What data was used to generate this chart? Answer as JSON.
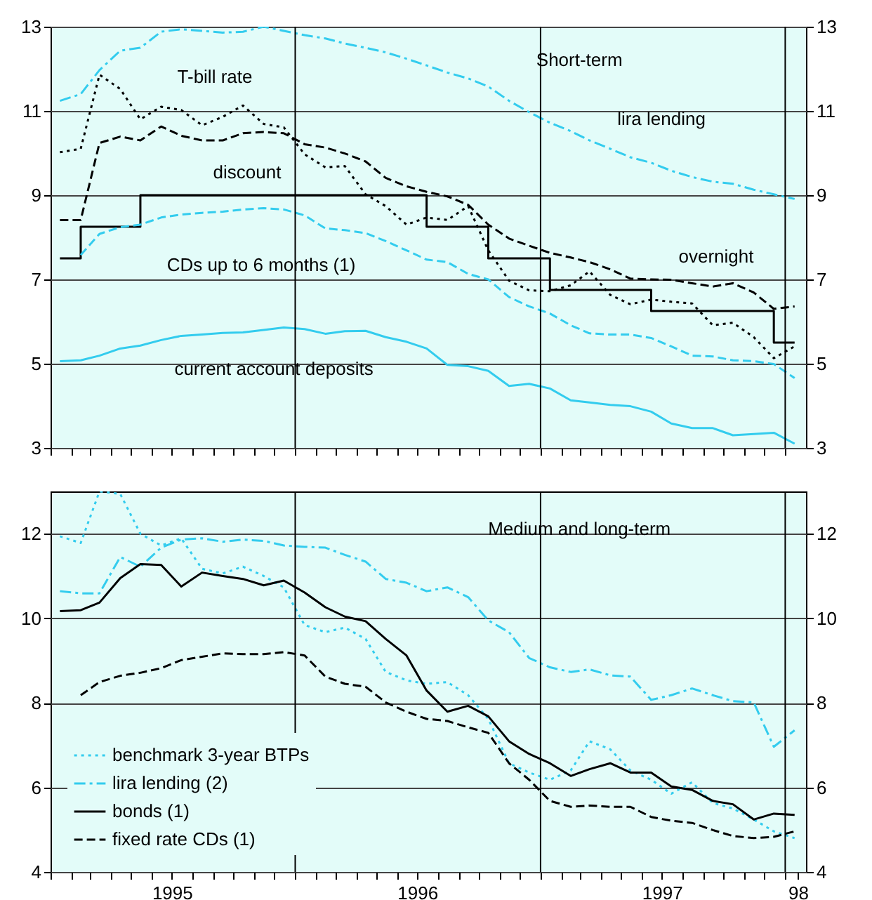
{
  "chart_data": [
    {
      "type": "line",
      "title": "Short-term",
      "x": [
        "1995-01-15",
        "1995-02-15",
        "1995-03-15",
        "1995-04-15",
        "1995-05-15",
        "1995-06-15",
        "1995-07-15",
        "1995-08-15",
        "1995-09-15",
        "1995-10-15",
        "1995-11-15",
        "1995-12-15",
        "1996-01-15",
        "1996-02-15",
        "1996-03-15",
        "1996-04-15",
        "1996-05-15",
        "1996-06-15",
        "1996-07-15",
        "1996-08-15",
        "1996-09-15",
        "1996-10-15",
        "1996-11-15",
        "1996-12-15",
        "1997-01-15",
        "1997-02-15",
        "1997-03-15",
        "1997-04-15",
        "1997-05-15",
        "1997-06-15",
        "1997-07-15",
        "1997-08-15",
        "1997-09-15",
        "1997-10-15",
        "1997-11-15",
        "1997-12-15",
        "1998-01-15"
      ],
      "series": [
        {
          "color": "#33ccee",
          "line_style": "dashdot",
          "values": [
            11.24,
            11.4,
            11.97,
            12.43,
            12.5,
            12.88,
            12.94,
            12.9,
            12.86,
            12.88,
            13.0,
            12.9,
            12.8,
            12.72,
            12.6,
            12.5,
            12.39,
            12.24,
            12.08,
            11.91,
            11.77,
            11.58,
            11.24,
            10.97,
            10.72,
            10.52,
            10.3,
            10.1,
            9.9,
            9.77,
            9.58,
            9.43,
            9.32,
            9.27,
            9.13,
            9.02,
            8.91
          ]
        },
        {
          "color": "#000000",
          "line_style": "dotted",
          "values": [
            10.02,
            10.1,
            11.86,
            11.52,
            10.8,
            11.1,
            11.02,
            10.66,
            10.86,
            11.13,
            10.69,
            10.61,
            9.97,
            9.66,
            9.69,
            9.02,
            8.74,
            8.3,
            8.47,
            8.41,
            8.74,
            7.69,
            6.97,
            6.74,
            6.72,
            6.86,
            7.19,
            6.63,
            6.41,
            6.52,
            6.47,
            6.43,
            5.91,
            5.97,
            5.63,
            5.13,
            5.41
          ]
        },
        {
          "color": "#000000",
          "line_style": "dashed",
          "values": [
            8.41,
            8.41,
            10.24,
            10.39,
            10.3,
            10.63,
            10.41,
            10.3,
            10.3,
            10.47,
            10.5,
            10.47,
            10.21,
            10.13,
            9.99,
            9.8,
            9.41,
            9.21,
            9.08,
            8.97,
            8.77,
            8.3,
            7.97,
            7.8,
            7.63,
            7.52,
            7.41,
            7.24,
            7.02,
            7.0,
            6.99,
            6.91,
            6.83,
            6.91,
            6.69,
            6.3,
            6.36
          ]
        },
        {
          "type": "step",
          "color": "#000000",
          "line_style": "solid",
          "values": [
            7.5,
            8.25,
            8.25,
            8.25,
            9,
            9,
            9,
            9,
            9,
            9,
            9,
            9,
            9,
            9,
            9,
            9,
            9,
            9,
            8.25,
            8.25,
            8.25,
            7.5,
            7.5,
            7.5,
            6.75,
            6.75,
            6.75,
            6.75,
            6.75,
            6.25,
            6.25,
            6.25,
            6.25,
            6.25,
            6.25,
            5.5,
            5.5
          ]
        },
        {
          "color": "#33ccee",
          "line_style": "dashed",
          "values": [
            null,
            7.58,
            8.08,
            8.24,
            8.3,
            8.47,
            8.54,
            8.58,
            8.61,
            8.66,
            8.69,
            8.66,
            8.52,
            8.21,
            8.17,
            8.1,
            7.91,
            7.69,
            7.47,
            7.41,
            7.13,
            7.0,
            6.58,
            6.36,
            6.19,
            5.91,
            5.72,
            5.69,
            5.69,
            5.61,
            5.41,
            5.19,
            5.17,
            5.08,
            5.06,
            4.99,
            4.66
          ]
        },
        {
          "color": "#33ccee",
          "line_style": "solid",
          "values": [
            5.06,
            5.08,
            5.19,
            5.36,
            5.43,
            5.56,
            5.66,
            5.69,
            5.73,
            5.74,
            5.8,
            5.86,
            5.82,
            5.71,
            5.77,
            5.78,
            5.63,
            5.52,
            5.36,
            4.97,
            4.94,
            4.83,
            4.47,
            4.52,
            4.41,
            4.13,
            4.08,
            4.02,
            3.99,
            3.86,
            3.58,
            3.47,
            3.47,
            3.3,
            3.33,
            3.36,
            3.1
          ]
        }
      ],
      "annotations": [
        "T-bill rate",
        "lira lending",
        "discount",
        "CDs up to 6 months (1)",
        "overnight",
        "current account deposits"
      ],
      "xlim": [
        "1995-01",
        "1998-02"
      ],
      "xticks": [
        {
          "value": "1995-01",
          "label": null
        },
        {
          "value": "1995-02",
          "label": null
        },
        {
          "value": "1995-03",
          "label": null
        },
        {
          "value": "1995-04",
          "label": null
        },
        {
          "value": "1995-05",
          "label": null
        },
        {
          "value": "1995-06",
          "label": null
        },
        {
          "value": "1995-07",
          "label": null
        },
        {
          "value": "1995-08",
          "label": null
        },
        {
          "value": "1995-09",
          "label": null
        },
        {
          "value": "1995-10",
          "label": null
        },
        {
          "value": "1995-11",
          "label": null
        },
        {
          "value": "1995-12",
          "label": null
        },
        {
          "value": "1996-01",
          "label": null
        },
        {
          "value": "1996-02",
          "label": null
        },
        {
          "value": "1996-03",
          "label": null
        },
        {
          "value": "1996-04",
          "label": null
        },
        {
          "value": "1996-05",
          "label": null
        },
        {
          "value": "1996-06",
          "label": null
        },
        {
          "value": "1996-07",
          "label": null
        },
        {
          "value": "1996-08",
          "label": null
        },
        {
          "value": "1996-09",
          "label": null
        },
        {
          "value": "1996-10",
          "label": null
        },
        {
          "value": "1996-11",
          "label": null
        },
        {
          "value": "1996-12",
          "label": null
        },
        {
          "value": "1997-01",
          "label": null
        },
        {
          "value": "1997-02",
          "label": null
        },
        {
          "value": "1997-03",
          "label": null
        },
        {
          "value": "1997-04",
          "label": null
        },
        {
          "value": "1997-05",
          "label": null
        },
        {
          "value": "1997-06",
          "label": null
        },
        {
          "value": "1997-07",
          "label": null
        },
        {
          "value": "1997-08",
          "label": null
        },
        {
          "value": "1997-09",
          "label": null
        },
        {
          "value": "1997-10",
          "label": null
        },
        {
          "value": "1997-11",
          "label": null
        },
        {
          "value": "1997-12",
          "label": null
        },
        {
          "value": "1998-01",
          "label": null
        }
      ],
      "ylim": [
        3,
        13
      ],
      "yticks": [
        3,
        5,
        7,
        9,
        11,
        13
      ],
      "y2lim": [
        3,
        13
      ],
      "y2ticks": [
        3,
        5,
        7,
        9,
        11,
        13
      ],
      "grid": "y",
      "tick_labels": "y",
      "ref_lines": [
        {
          "axis": "x",
          "value": "1996-01",
          "color": "#000000"
        },
        {
          "axis": "x",
          "value": "1997-01",
          "color": "#000000"
        },
        {
          "axis": "x",
          "value": "1998-01",
          "color": "#000000"
        }
      ]
    },
    {
      "type": "line",
      "title": "Medium and long-term",
      "x": [
        "1995-01-15",
        "1995-02-15",
        "1995-03-15",
        "1995-04-15",
        "1995-05-15",
        "1995-06-15",
        "1995-07-15",
        "1995-08-15",
        "1995-09-15",
        "1995-10-15",
        "1995-11-15",
        "1995-12-15",
        "1996-01-15",
        "1996-02-15",
        "1996-03-15",
        "1996-04-15",
        "1996-05-15",
        "1996-06-15",
        "1996-07-15",
        "1996-08-15",
        "1996-09-15",
        "1996-10-15",
        "1996-11-15",
        "1996-12-15",
        "1997-01-15",
        "1997-02-15",
        "1997-03-15",
        "1997-04-15",
        "1997-05-15",
        "1997-06-15",
        "1997-07-15",
        "1997-08-15",
        "1997-09-15",
        "1997-10-15",
        "1997-11-15",
        "1997-12-15",
        "1998-01-15"
      ],
      "series": [
        {
          "name": "benchmark 3-year BTPs",
          "color": "#33ccee",
          "line_style": "dotted",
          "values": [
            11.94,
            11.78,
            13.0,
            12.94,
            12.0,
            11.72,
            11.89,
            11.17,
            11.06,
            11.22,
            11.0,
            10.73,
            9.84,
            9.67,
            9.78,
            9.51,
            8.73,
            8.53,
            8.45,
            8.49,
            8.18,
            7.62,
            6.57,
            6.35,
            6.18,
            6.4,
            7.09,
            6.9,
            6.4,
            6.18,
            5.85,
            6.12,
            5.63,
            5.5,
            5.24,
            4.96,
            4.8
          ]
        },
        {
          "name": "lira lending (2)",
          "color": "#33ccee",
          "line_style": "dashdot",
          "values": [
            10.64,
            10.59,
            10.59,
            11.45,
            11.22,
            11.67,
            11.86,
            11.89,
            11.81,
            11.86,
            11.83,
            11.72,
            11.69,
            11.67,
            11.5,
            11.34,
            10.93,
            10.84,
            10.64,
            10.73,
            10.5,
            9.95,
            9.67,
            9.06,
            8.84,
            8.73,
            8.79,
            8.65,
            8.62,
            8.07,
            8.18,
            8.34,
            8.18,
            8.04,
            8.01,
            6.96,
            7.35
          ]
        },
        {
          "name": "bonds (1)",
          "color": "#000000",
          "line_style": "solid",
          "values": [
            10.17,
            10.19,
            10.37,
            10.95,
            11.28,
            11.26,
            10.75,
            11.08,
            11.0,
            10.93,
            10.78,
            10.89,
            10.61,
            10.26,
            10.04,
            9.93,
            9.51,
            9.12,
            8.29,
            7.79,
            7.93,
            7.68,
            7.09,
            6.79,
            6.57,
            6.27,
            6.43,
            6.57,
            6.35,
            6.35,
            6.02,
            5.94,
            5.68,
            5.6,
            5.24,
            5.38,
            5.35
          ]
        },
        {
          "name": "fixed rate CDs (1)",
          "color": "#000000",
          "line_style": "dashed",
          "values": [
            null,
            8.18,
            8.49,
            8.64,
            8.71,
            8.82,
            9.01,
            9.09,
            9.17,
            9.15,
            9.15,
            9.2,
            9.12,
            8.62,
            8.45,
            8.38,
            8.01,
            7.79,
            7.62,
            7.57,
            7.42,
            7.29,
            6.57,
            6.18,
            5.68,
            5.54,
            5.57,
            5.54,
            5.54,
            5.3,
            5.21,
            5.16,
            4.99,
            4.85,
            4.8,
            4.83,
            4.96
          ]
        }
      ],
      "xlim": [
        "1995-01",
        "1998-02"
      ],
      "xticks": [
        {
          "value": "1995-01",
          "label": null
        },
        {
          "value": "1995-02",
          "label": null
        },
        {
          "value": "1995-03",
          "label": null
        },
        {
          "value": "1995-04",
          "label": null
        },
        {
          "value": "1995-05",
          "label": null
        },
        {
          "value": "1995-06",
          "label": null
        },
        {
          "value": "1995-07",
          "label": "1995"
        },
        {
          "value": "1995-08",
          "label": null
        },
        {
          "value": "1995-09",
          "label": null
        },
        {
          "value": "1995-10",
          "label": null
        },
        {
          "value": "1995-11",
          "label": null
        },
        {
          "value": "1995-12",
          "label": null
        },
        {
          "value": "1996-01",
          "label": null
        },
        {
          "value": "1996-02",
          "label": null
        },
        {
          "value": "1996-03",
          "label": null
        },
        {
          "value": "1996-04",
          "label": null
        },
        {
          "value": "1996-05",
          "label": null
        },
        {
          "value": "1996-06",
          "label": null
        },
        {
          "value": "1996-07",
          "label": "1996"
        },
        {
          "value": "1996-08",
          "label": null
        },
        {
          "value": "1996-09",
          "label": null
        },
        {
          "value": "1996-10",
          "label": null
        },
        {
          "value": "1996-11",
          "label": null
        },
        {
          "value": "1996-12",
          "label": null
        },
        {
          "value": "1997-01",
          "label": null
        },
        {
          "value": "1997-02",
          "label": null
        },
        {
          "value": "1997-03",
          "label": null
        },
        {
          "value": "1997-04",
          "label": null
        },
        {
          "value": "1997-05",
          "label": null
        },
        {
          "value": "1997-06",
          "label": null
        },
        {
          "value": "1997-07",
          "label": "1997"
        },
        {
          "value": "1997-08",
          "label": null
        },
        {
          "value": "1997-09",
          "label": null
        },
        {
          "value": "1997-10",
          "label": null
        },
        {
          "value": "1997-11",
          "label": null
        },
        {
          "value": "1997-12",
          "label": null
        },
        {
          "value": "1998-01",
          "label": null
        },
        {
          "value": "1998-01-20",
          "label": "98"
        }
      ],
      "ylim": [
        4,
        13
      ],
      "yticks": [
        4,
        6,
        8,
        10,
        12
      ],
      "y2lim": [
        4,
        13
      ],
      "y2ticks": [
        4,
        6,
        8,
        10,
        12
      ],
      "grid": "y",
      "legend": "bottom left",
      "ref_lines": [
        {
          "axis": "x",
          "value": "1996-01",
          "color": "#000000"
        },
        {
          "axis": "x",
          "value": "1997-01",
          "color": "#000000"
        },
        {
          "axis": "x",
          "value": "1998-01",
          "color": "#000000"
        }
      ]
    }
  ]
}
